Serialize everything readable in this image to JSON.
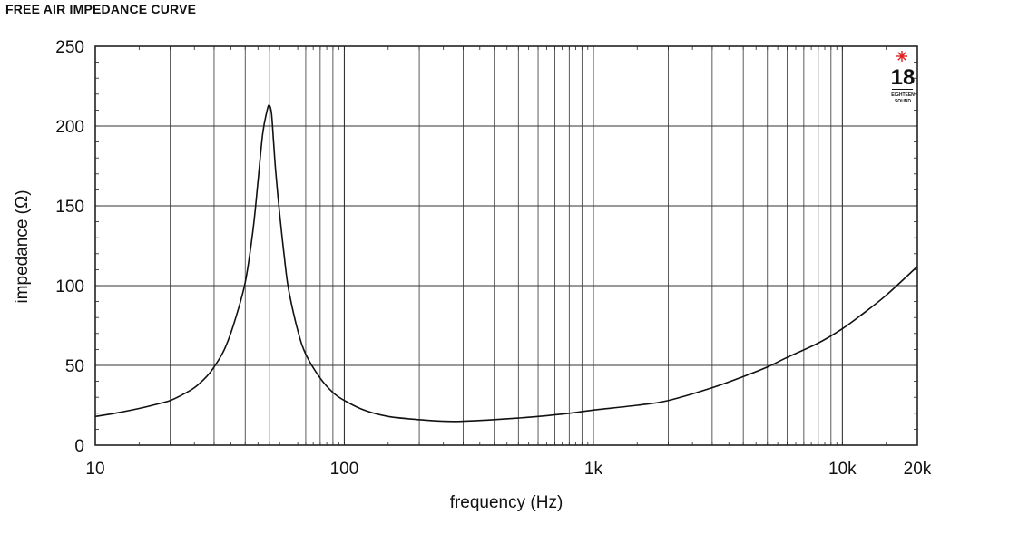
{
  "page": {
    "title": "FREE AIR IMPEDANCE CURVE"
  },
  "logo": {
    "number": "18",
    "line1": "EIGHTEEN",
    "line2": "SOUND",
    "star_color": "#e02020"
  },
  "colors": {
    "curve": "#111111",
    "grid": "#333333",
    "frame": "#222222"
  },
  "chart_data": {
    "type": "line",
    "title": "",
    "xlabel": "frequency (Hz)",
    "ylabel": "impedance (Ω)",
    "x_scale": "log",
    "xlim": [
      10,
      20000
    ],
    "ylim": [
      0,
      250
    ],
    "grid": true,
    "x_tick_values": [
      10,
      100,
      1000,
      10000,
      20000
    ],
    "x_tick_labels": [
      "10",
      "100",
      "1k",
      "10k",
      "20k"
    ],
    "y_tick_values": [
      0,
      50,
      100,
      150,
      200,
      250
    ],
    "y_tick_labels": [
      "0",
      "50",
      "100",
      "150",
      "200",
      "250"
    ],
    "series": [
      {
        "x": [
          10,
          12,
          15,
          18,
          20,
          22,
          25,
          28,
          30,
          33,
          36,
          40,
          43,
          45,
          47,
          49,
          50,
          51,
          52,
          53,
          55,
          58,
          60,
          65,
          70,
          80,
          90,
          100,
          120,
          150,
          200,
          250,
          300,
          400,
          500,
          600,
          800,
          1000,
          1500,
          2000,
          3000,
          4000,
          5000,
          6000,
          8000,
          10000,
          12000,
          15000,
          20000
        ],
        "y": [
          18,
          20,
          23,
          26,
          28,
          31,
          36,
          43,
          49,
          60,
          76,
          102,
          135,
          165,
          195,
          210,
          213,
          208,
          190,
          172,
          145,
          112,
          96,
          72,
          57,
          42,
          33,
          28,
          22,
          18,
          16,
          15,
          15,
          16,
          17,
          18,
          20,
          22,
          25,
          28,
          36,
          43,
          49,
          55,
          64,
          73,
          82,
          94,
          112
        ]
      }
    ]
  }
}
